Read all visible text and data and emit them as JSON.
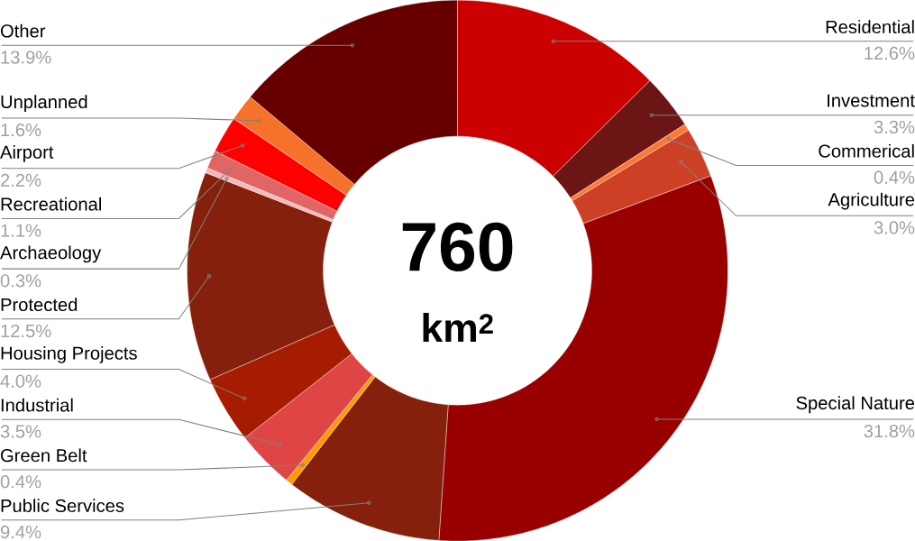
{
  "chart_data": {
    "type": "donut",
    "categories": [
      "Residential",
      "Investment",
      "Commerical",
      "Agriculture",
      "Special Nature",
      "Public Services",
      "Green Belt",
      "Industrial",
      "Housing Projects",
      "Protected",
      "Archaeology",
      "Recreational",
      "Airport",
      "Unplanned",
      "Other"
    ],
    "values": [
      12.6,
      3.3,
      0.4,
      3.0,
      31.8,
      9.4,
      0.4,
      3.5,
      4.0,
      12.5,
      0.3,
      1.1,
      2.2,
      1.6,
      13.9
    ],
    "value_labels": [
      "12.6%",
      "3.3%",
      "0.4%",
      "3.0%",
      "31.8%",
      "9.4%",
      "0.4%",
      "3.5%",
      "4.0%",
      "12.5%",
      "0.3%",
      "1.1%",
      "2.2%",
      "1.6%",
      "13.9%"
    ],
    "colors": [
      "#cc0000",
      "#6b1515",
      "#ff7733",
      "#cc4125",
      "#990000",
      "#85200c",
      "#ff9900",
      "#e04545",
      "#a61c00",
      "#85200c",
      "#f4b8b8",
      "#e06666",
      "#ff0000",
      "#f6712a",
      "#660000"
    ],
    "annotations": [
      "760",
      "km$^{2}$"
    ]
  }
}
